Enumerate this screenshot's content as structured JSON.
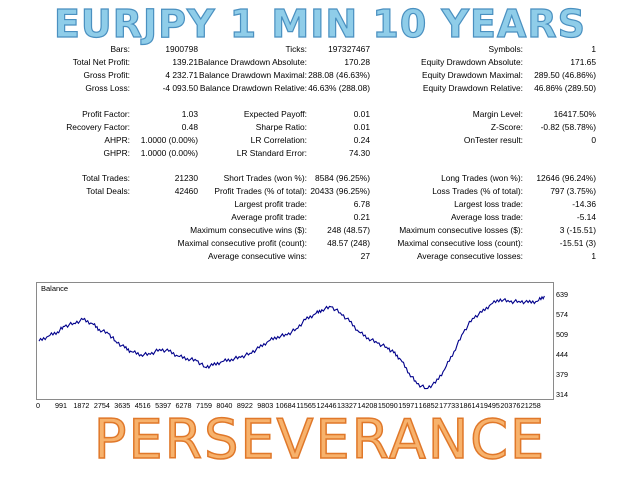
{
  "header": {
    "title": "EURJPY 1 MIN 10 YEARS"
  },
  "stats": {
    "bars": {
      "label": "Bars:",
      "value": "1900798"
    },
    "ticks": {
      "label": "Ticks:",
      "value": "197327467"
    },
    "symbols": {
      "label": "Symbols:",
      "value": "1"
    },
    "total_net_profit": {
      "label": "Total Net Profit:",
      "value": "139.21"
    },
    "balance_dd_abs": {
      "label": "Balance Drawdown Absolute:",
      "value": "170.28"
    },
    "equity_dd_abs": {
      "label": "Equity Drawdown Absolute:",
      "value": "171.65"
    },
    "gross_profit": {
      "label": "Gross Profit:",
      "value": "4 232.71"
    },
    "balance_dd_max": {
      "label": "Balance Drawdown Maximal:",
      "value": "288.08 (46.63%)"
    },
    "equity_dd_max": {
      "label": "Equity Drawdown Maximal:",
      "value": "289.50 (46.86%)"
    },
    "gross_loss": {
      "label": "Gross Loss:",
      "value": "-4 093.50"
    },
    "balance_dd_rel": {
      "label": "Balance Drawdown Relative:",
      "value": "46.63% (288.08)"
    },
    "equity_dd_rel": {
      "label": "Equity Drawdown Relative:",
      "value": "46.86% (289.50)"
    },
    "profit_factor": {
      "label": "Profit Factor:",
      "value": "1.03"
    },
    "expected_payoff": {
      "label": "Expected Payoff:",
      "value": "0.01"
    },
    "margin_level": {
      "label": "Margin Level:",
      "value": "16417.50%"
    },
    "recovery_factor": {
      "label": "Recovery Factor:",
      "value": "0.48"
    },
    "sharpe_ratio": {
      "label": "Sharpe Ratio:",
      "value": "0.01"
    },
    "z_score": {
      "label": "Z-Score:",
      "value": "-0.82 (58.78%)"
    },
    "ahpr": {
      "label": "AHPR:",
      "value": "1.0000 (0.00%)"
    },
    "lr_correlation": {
      "label": "LR Correlation:",
      "value": "0.24"
    },
    "ontester": {
      "label": "OnTester result:",
      "value": "0"
    },
    "ghpr": {
      "label": "GHPR:",
      "value": "1.0000 (0.00%)"
    },
    "lr_std_error": {
      "label": "LR Standard Error:",
      "value": "74.30"
    },
    "total_trades": {
      "label": "Total Trades:",
      "value": "21230"
    },
    "short_trades": {
      "label": "Short Trades (won %):",
      "value": "8584 (96.25%)"
    },
    "long_trades": {
      "label": "Long Trades (won %):",
      "value": "12646 (96.24%)"
    },
    "total_deals": {
      "label": "Total Deals:",
      "value": "42460"
    },
    "profit_trades": {
      "label": "Profit Trades (% of total):",
      "value": "20433 (96.25%)"
    },
    "loss_trades": {
      "label": "Loss Trades (% of total):",
      "value": "797 (3.75%)"
    },
    "largest_profit": {
      "label": "Largest profit trade:",
      "value": "6.78"
    },
    "largest_loss": {
      "label": "Largest loss trade:",
      "value": "-14.36"
    },
    "avg_profit": {
      "label": "Average profit trade:",
      "value": "0.21"
    },
    "avg_loss": {
      "label": "Average loss trade:",
      "value": "-5.14"
    },
    "max_consec_wins": {
      "label": "Maximum consecutive wins ($):",
      "value": "248 (48.57)"
    },
    "max_consec_losses": {
      "label": "Maximum consecutive losses ($):",
      "value": "3 (-15.51)"
    },
    "maximal_consec_profit": {
      "label": "Maximal consecutive profit (count):",
      "value": "48.57 (248)"
    },
    "maximal_consec_loss": {
      "label": "Maximal consecutive loss (count):",
      "value": "-15.51 (3)"
    },
    "avg_consec_wins": {
      "label": "Average consecutive wins:",
      "value": "27"
    },
    "avg_consec_losses": {
      "label": "Average consecutive losses:",
      "value": "1"
    }
  },
  "chart_data": {
    "type": "line",
    "title": "Balance",
    "line_color": "#00008b",
    "grid": false,
    "ylim": [
      314,
      660
    ],
    "xlim": [
      0,
      22000
    ],
    "yticks": [
      "639",
      "574",
      "509",
      "444",
      "379",
      "314"
    ],
    "xticks": [
      "0",
      "991",
      "1872",
      "2754",
      "3635",
      "4516",
      "5397",
      "6278",
      "7159",
      "8040",
      "8922",
      "9803",
      "10684",
      "11565",
      "12446",
      "13327",
      "14208",
      "15090",
      "15971",
      "16852",
      "17733",
      "18614",
      "19495",
      "20376",
      "21258"
    ],
    "series": [
      {
        "x": [
          0,
          400,
          800,
          1100,
          1500,
          1900,
          2300,
          2600,
          3000,
          3300,
          3700,
          4000,
          4400,
          4800,
          5200,
          5600,
          6000,
          6400,
          6800,
          7159,
          7500,
          7900,
          8300,
          8700,
          9100,
          9500,
          9900,
          10300,
          10700,
          11100,
          11500,
          11900,
          12200,
          12600,
          13000,
          13400,
          13800,
          14200,
          14600,
          15000,
          15300,
          15600,
          15971,
          16300,
          16700,
          17100,
          17500,
          17900,
          18300,
          18700,
          19100,
          19495,
          19900,
          20300,
          20700,
          21100,
          21500,
          21800
        ],
        "y": [
          490,
          506,
          520,
          538,
          548,
          560,
          547,
          528,
          514,
          490,
          468,
          455,
          446,
          447,
          463,
          457,
          441,
          433,
          426,
          405,
          411,
          423,
          431,
          437,
          450,
          468,
          490,
          505,
          510,
          530,
          560,
          578,
          592,
          602,
          582,
          554,
          520,
          500,
          483,
          470,
          452,
          430,
          385,
          351,
          335,
          353,
          398,
          456,
          517,
          564,
          584,
          610,
          627,
          618,
          620,
          616,
          620,
          637
        ]
      }
    ]
  },
  "footer": {
    "text": "PERSEVERANCE"
  }
}
